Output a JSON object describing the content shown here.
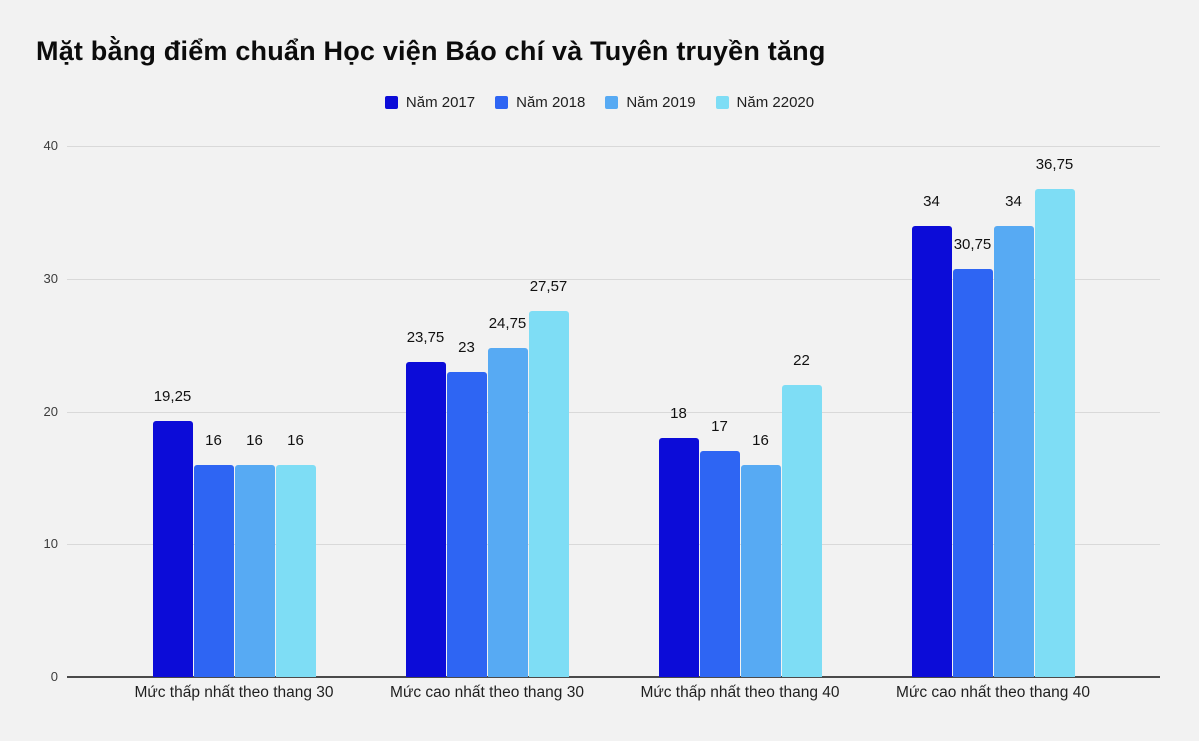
{
  "chart_data": {
    "type": "bar",
    "title": "Mặt bằng điểm chuẩn Học viện Báo chí và Tuyên truyền tăng",
    "categories": [
      "Mức thấp nhất theo thang 30",
      "Mức cao nhất theo thang 30",
      "Mức thấp nhất theo thang 40",
      "Mức cao nhất theo thang 40"
    ],
    "series": [
      {
        "name": "Năm 2017",
        "color": "#0c0cd8",
        "values": [
          19.25,
          23.75,
          18,
          34
        ],
        "value_labels": [
          "19,25",
          "23,75",
          "18",
          "34"
        ]
      },
      {
        "name": "Năm 2018",
        "color": "#2e65f3",
        "values": [
          16,
          23,
          17,
          30.75
        ],
        "value_labels": [
          "16",
          "23",
          "17",
          "30,75"
        ]
      },
      {
        "name": "Năm 2019",
        "color": "#57aaf3",
        "values": [
          16,
          24.75,
          16,
          34
        ],
        "value_labels": [
          "16",
          "24,75",
          "16",
          "34"
        ]
      },
      {
        "name": "Năm 22020",
        "color": "#7eddf5",
        "values": [
          16,
          27.57,
          22,
          36.75
        ],
        "value_labels": [
          "16",
          "27,57",
          "22",
          "36,75"
        ]
      }
    ],
    "ylim": [
      0,
      40
    ],
    "yticks": [
      {
        "value": 0,
        "label": "0"
      },
      {
        "value": 10,
        "label": "10"
      },
      {
        "value": 20,
        "label": "20"
      },
      {
        "value": 30,
        "label": "30"
      },
      {
        "value": 40,
        "label": "40"
      }
    ],
    "grid": true,
    "legend_position": "top",
    "colors": {
      "background": "#f2f2f2",
      "gridline": "#d9d9d9",
      "baseline": "#4a4a4a",
      "title_text": "#0c0c0c",
      "label_text": "#1f1f1f"
    }
  }
}
